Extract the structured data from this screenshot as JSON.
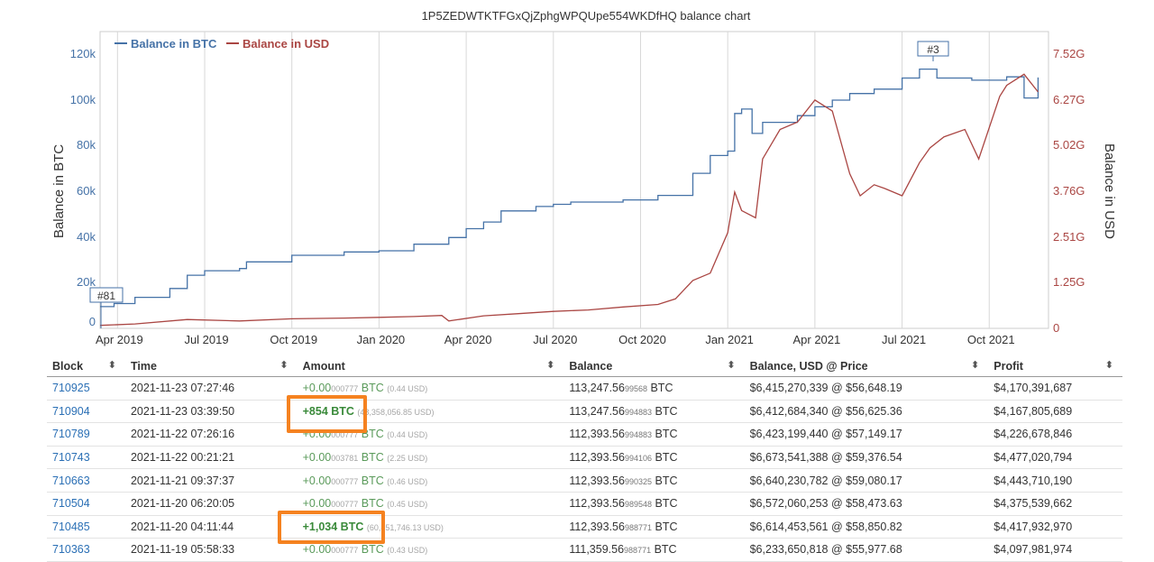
{
  "chart_data": {
    "type": "line",
    "title": "1P5ZEDWTKTFGxQjZphgWPQUpe554WKDfHQ balance chart",
    "xlabel": "",
    "ylabel": "Balance in BTC",
    "y2label": "Balance in USD",
    "ylim": [
      0,
      125000
    ],
    "y2lim": [
      0,
      7.52
    ],
    "yticks": [
      "0",
      "20k",
      "40k",
      "60k",
      "80k",
      "100k",
      "120k"
    ],
    "y2ticks": [
      "0",
      "1.25G",
      "2.51G",
      "3.76G",
      "5.02G",
      "6.27G",
      "7.52G"
    ],
    "xticks": [
      "Apr 2019",
      "Jul 2019",
      "Oct 2019",
      "Jan 2020",
      "Apr 2020",
      "Jul 2020",
      "Oct 2020",
      "Jan 2021",
      "Apr 2021",
      "Jul 2021",
      "Oct 2021"
    ],
    "legend_position": "top-left",
    "grid": true,
    "annotations": [
      "#81",
      "#3"
    ],
    "series": [
      {
        "name": "Balance in BTC",
        "color": "#4572a7",
        "axis": "left",
        "x": [
          2019.2,
          2019.24,
          2019.3,
          2019.4,
          2019.45,
          2019.5,
          2019.6,
          2019.62,
          2019.75,
          2019.9,
          2020.0,
          2020.1,
          2020.2,
          2020.25,
          2020.3,
          2020.35,
          2020.45,
          2020.5,
          2020.55,
          2020.7,
          2020.8,
          2020.9,
          2020.95,
          2021.0,
          2021.02,
          2021.04,
          2021.07,
          2021.1,
          2021.2,
          2021.25,
          2021.3,
          2021.35,
          2021.42,
          2021.5,
          2021.55,
          2021.6,
          2021.7,
          2021.8,
          2021.85,
          2021.89
        ],
        "y": [
          9800,
          11200,
          14000,
          18000,
          24000,
          26000,
          27000,
          30000,
          33000,
          34500,
          35000,
          38000,
          41000,
          45000,
          48000,
          53000,
          55000,
          56000,
          57000,
          58000,
          60000,
          70000,
          78000,
          80000,
          97000,
          99000,
          88000,
          93000,
          96000,
          100000,
          103000,
          106000,
          108000,
          113000,
          117000,
          113000,
          112000,
          113500,
          104000,
          113247.56
        ]
      },
      {
        "name": "Balance in USD",
        "color": "#aa4643",
        "axis": "right",
        "x": [
          2019.2,
          2019.3,
          2019.45,
          2019.6,
          2019.75,
          2019.9,
          2020.0,
          2020.1,
          2020.18,
          2020.2,
          2020.3,
          2020.4,
          2020.5,
          2020.6,
          2020.7,
          2020.8,
          2020.85,
          2020.9,
          2020.95,
          2021.0,
          2021.02,
          2021.04,
          2021.08,
          2021.1,
          2021.15,
          2021.2,
          2021.25,
          2021.3,
          2021.35,
          2021.38,
          2021.42,
          2021.45,
          2021.5,
          2021.55,
          2021.58,
          2021.62,
          2021.68,
          2021.72,
          2021.78,
          2021.8,
          2021.85,
          2021.89
        ],
        "y": [
          0.08,
          0.12,
          0.24,
          0.2,
          0.26,
          0.28,
          0.3,
          0.32,
          0.35,
          0.2,
          0.34,
          0.4,
          0.46,
          0.5,
          0.58,
          0.65,
          0.8,
          1.3,
          1.5,
          2.6,
          3.7,
          3.2,
          3.0,
          4.6,
          5.4,
          5.6,
          6.2,
          5.9,
          4.2,
          3.6,
          3.9,
          3.8,
          3.6,
          4.5,
          4.9,
          5.2,
          5.4,
          4.6,
          6.3,
          6.6,
          6.9,
          6.42
        ]
      }
    ]
  },
  "table": {
    "headers": [
      "Block",
      "Time",
      "Amount",
      "Balance",
      "Balance, USD @ Price",
      "Profit"
    ],
    "sort_icon": "⬍",
    "rows": [
      {
        "block": "710925",
        "time": "2021-11-23 07:27:46",
        "amt_main": "+0.00",
        "amt_small": "000777",
        "amt_unit": " BTC ",
        "amt_usd": "(0.44 USD)",
        "big": false,
        "bal_main": "113,247.56",
        "bal_small": "99568",
        "bal_unit": " BTC",
        "usd": "$6,415,270,339 @ $56,648.19",
        "profit": "$4,170,391,687"
      },
      {
        "block": "710904",
        "time": "2021-11-23 03:39:50",
        "amt_main": "+854 BTC",
        "amt_small": "",
        "amt_unit": " ",
        "amt_usd": "(48,358,056.85 USD)",
        "big": true,
        "bal_main": "113,247.56",
        "bal_small": "994883",
        "bal_unit": " BTC",
        "usd": "$6,412,684,340 @ $56,625.36",
        "profit": "$4,167,805,689"
      },
      {
        "block": "710789",
        "time": "2021-11-22 07:26:16",
        "amt_main": "+0.00",
        "amt_small": "000777",
        "amt_unit": " BTC ",
        "amt_usd": "(0.44 USD)",
        "big": false,
        "bal_main": "112,393.56",
        "bal_small": "994883",
        "bal_unit": " BTC",
        "usd": "$6,423,199,440 @ $57,149.17",
        "profit": "$4,226,678,846"
      },
      {
        "block": "710743",
        "time": "2021-11-22 00:21:21",
        "amt_main": "+0.00",
        "amt_small": "003781",
        "amt_unit": " BTC ",
        "amt_usd": "(2.25 USD)",
        "big": false,
        "bal_main": "112,393.56",
        "bal_small": "994106",
        "bal_unit": " BTC",
        "usd": "$6,673,541,388 @ $59,376.54",
        "profit": "$4,477,020,794"
      },
      {
        "block": "710663",
        "time": "2021-11-21 09:37:37",
        "amt_main": "+0.00",
        "amt_small": "000777",
        "amt_unit": " BTC ",
        "amt_usd": "(0.46 USD)",
        "big": false,
        "bal_main": "112,393.56",
        "bal_small": "990325",
        "bal_unit": " BTC",
        "usd": "$6,640,230,782 @ $59,080.17",
        "profit": "$4,443,710,190"
      },
      {
        "block": "710504",
        "time": "2021-11-20 06:20:05",
        "amt_main": "+0.00",
        "amt_small": "000777",
        "amt_unit": " BTC ",
        "amt_usd": "(0.45 USD)",
        "big": false,
        "bal_main": "112,393.56",
        "bal_small": "989548",
        "bal_unit": " BTC",
        "usd": "$6,572,060,253 @ $58,473.63",
        "profit": "$4,375,539,662"
      },
      {
        "block": "710485",
        "time": "2021-11-20 04:11:44",
        "amt_main": "+1,034 BTC",
        "amt_small": "",
        "amt_unit": " ",
        "amt_usd": "(60,851,746.13 USD)",
        "big": true,
        "bal_main": "112,393.56",
        "bal_small": "988771",
        "bal_unit": " BTC",
        "usd": "$6,614,453,561 @ $58,850.82",
        "profit": "$4,417,932,970"
      },
      {
        "block": "710363",
        "time": "2021-11-19 05:58:33",
        "amt_main": "+0.00",
        "amt_small": "000777",
        "amt_unit": " BTC ",
        "amt_usd": "(0.43 USD)",
        "big": false,
        "bal_main": "111,359.56",
        "bal_small": "988771",
        "bal_unit": " BTC",
        "usd": "$6,233,650,818 @ $55,977.68",
        "profit": "$4,097,981,974"
      }
    ]
  },
  "colors": {
    "highlight": "#f58220",
    "link": "#2a6fb5",
    "green": "#3a8a3a"
  }
}
